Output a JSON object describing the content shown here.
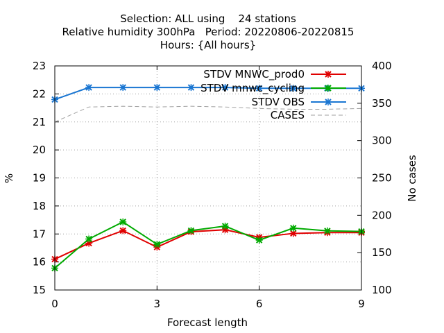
{
  "chart_data": {
    "type": "line",
    "title_lines": [
      "Selection: ALL using    24 stations",
      "Relative humidity 300hPa   Period: 20220806-20220815",
      "Hours: {All hours}"
    ],
    "xlabel": "Forecast length",
    "ylabel": "%",
    "y2label": "No cases",
    "xlim": [
      0,
      9
    ],
    "ylim": [
      15,
      23
    ],
    "y2lim": [
      100,
      400
    ],
    "xticks": [
      "0",
      "3",
      "6",
      "9"
    ],
    "yticks": [
      "15",
      "16",
      "17",
      "18",
      "19",
      "20",
      "21",
      "22",
      "23"
    ],
    "y2ticks": [
      "100",
      "150",
      "200",
      "250",
      "300",
      "350",
      "400"
    ],
    "grid": true,
    "legend_position": "top-right",
    "x": [
      0,
      1,
      2,
      3,
      4,
      5,
      6,
      7,
      8,
      9
    ],
    "series": [
      {
        "name": "STDV MNWC_prod0",
        "axis": "left",
        "color": "#e00000",
        "marker": "x",
        "values": [
          16.1,
          16.67,
          17.12,
          16.53,
          17.08,
          17.15,
          16.88,
          17.02,
          17.05,
          17.05
        ]
      },
      {
        "name": "STDV mnwc_cycling",
        "axis": "left",
        "color": "#00aa00",
        "marker": "x",
        "values": [
          15.78,
          16.82,
          17.43,
          16.63,
          17.12,
          17.28,
          16.78,
          17.21,
          17.11,
          17.09
        ]
      },
      {
        "name": "STDV OBS",
        "axis": "left",
        "color": "#1a76d2",
        "marker": "x",
        "values": [
          21.8,
          22.23,
          22.23,
          22.23,
          22.23,
          22.23,
          22.2,
          22.2,
          22.2,
          22.2
        ]
      },
      {
        "name": "CASES",
        "axis": "right",
        "color": "#a0a0a0",
        "marker": "none",
        "dashed": true,
        "values": [
          325,
          345,
          346,
          345,
          346,
          345,
          343,
          342,
          342,
          343
        ]
      }
    ]
  }
}
